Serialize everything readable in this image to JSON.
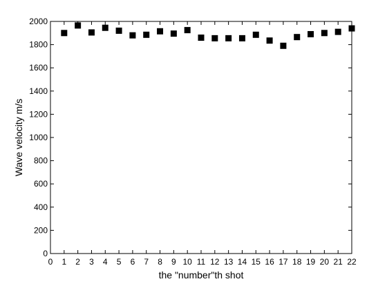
{
  "chart_data": {
    "type": "scatter",
    "xlabel": "the \"number\"th shot",
    "ylabel": "Wave velocity m/s",
    "xlim": [
      0,
      22
    ],
    "ylim": [
      0,
      2000
    ],
    "xticks": [
      0,
      1,
      2,
      3,
      4,
      5,
      6,
      7,
      8,
      9,
      10,
      11,
      12,
      13,
      14,
      15,
      16,
      17,
      18,
      19,
      20,
      21,
      22
    ],
    "yticks": [
      0,
      200,
      400,
      600,
      800,
      1000,
      1200,
      1400,
      1600,
      1800,
      2000
    ],
    "grid": false,
    "marker": "square",
    "marker_color": "#000000",
    "series": [
      {
        "x": [
          1,
          2,
          3,
          4,
          5,
          6,
          7,
          8,
          9,
          10,
          11,
          12,
          13,
          14,
          15,
          16,
          17,
          18,
          19,
          20,
          21,
          22
        ],
        "y": [
          1900,
          1965,
          1905,
          1945,
          1920,
          1880,
          1885,
          1915,
          1895,
          1925,
          1860,
          1855,
          1855,
          1855,
          1885,
          1835,
          1790,
          1865,
          1890,
          1900,
          1910,
          1940
        ]
      }
    ]
  }
}
